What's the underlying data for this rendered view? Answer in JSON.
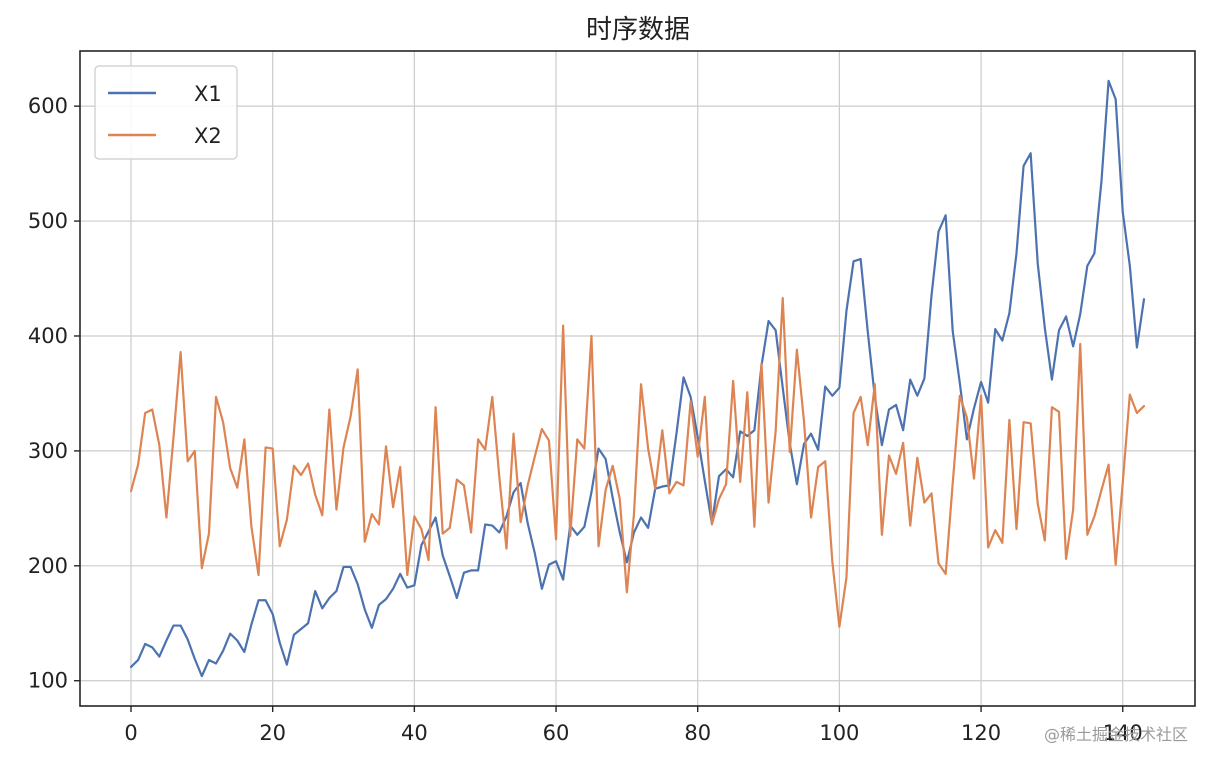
{
  "chart_data": {
    "type": "line",
    "title": "时序数据",
    "xlabel": "",
    "ylabel": "",
    "xlim": [
      -7.2,
      150.2
    ],
    "ylim": [
      78,
      648
    ],
    "xticks": [
      0,
      20,
      40,
      60,
      80,
      100,
      120,
      140
    ],
    "yticks": [
      100,
      200,
      300,
      400,
      500,
      600
    ],
    "xtick_labels": [
      "0",
      "20",
      "40",
      "60",
      "80",
      "100",
      "120",
      "140"
    ],
    "ytick_labels": [
      "100",
      "200",
      "300",
      "400",
      "500",
      "600"
    ],
    "grid": true,
    "legend": "top-left",
    "series": [
      {
        "name": "X1",
        "color": "#4c72b0",
        "values": [
          112,
          118,
          132,
          129,
          121,
          135,
          148,
          148,
          136,
          119,
          104,
          118,
          115,
          126,
          141,
          135,
          125,
          149,
          170,
          170,
          158,
          133,
          114,
          140,
          145,
          150,
          178,
          163,
          172,
          178,
          199,
          199,
          184,
          162,
          146,
          166,
          171,
          180,
          193,
          181,
          183,
          218,
          230,
          242,
          209,
          191,
          172,
          194,
          196,
          196,
          236,
          235,
          229,
          243,
          264,
          272,
          237,
          211,
          180,
          201,
          204,
          188,
          235,
          227,
          234,
          264,
          302,
          293,
          259,
          229,
          203,
          229,
          242,
          233,
          267,
          269,
          270,
          315,
          364,
          347,
          312,
          274,
          237,
          278,
          284,
          277,
          317,
          313,
          318,
          374,
          413,
          405,
          355,
          306,
          271,
          306,
          315,
          301,
          356,
          348,
          355,
          422,
          465,
          467,
          404,
          347,
          305,
          336,
          340,
          318,
          362,
          348,
          363,
          435,
          491,
          505,
          404,
          359,
          310,
          337,
          360,
          342,
          406,
          396,
          420,
          472,
          548,
          559,
          463,
          407,
          362,
          405,
          417,
          391,
          419,
          461,
          472,
          535,
          622,
          606,
          508,
          461,
          390,
          432
        ]
      },
      {
        "name": "X2",
        "color": "#dd8452",
        "values": [
          265,
          288,
          333,
          336,
          305,
          242,
          312,
          386,
          291,
          300,
          198,
          228,
          347,
          325,
          285,
          268,
          310,
          234,
          192,
          303,
          302,
          217,
          240,
          287,
          279,
          289,
          262,
          244,
          336,
          249,
          303,
          330,
          371,
          221,
          245,
          236,
          304,
          251,
          286,
          192,
          243,
          232,
          205,
          338,
          228,
          233,
          275,
          270,
          229,
          310,
          301,
          347,
          277,
          215,
          315,
          238,
          270,
          295,
          319,
          309,
          223,
          409,
          226,
          310,
          302,
          400,
          217,
          266,
          287,
          258,
          177,
          245,
          358,
          302,
          267,
          318,
          263,
          273,
          270,
          343,
          295,
          347,
          236,
          258,
          271,
          361,
          273,
          351,
          234,
          376,
          255,
          317,
          433,
          299,
          388,
          326,
          242,
          286,
          291,
          204,
          147,
          190,
          333,
          347,
          305,
          358,
          227,
          296,
          280,
          307,
          235,
          294,
          255,
          263,
          202,
          193,
          272,
          348,
          329,
          276,
          348,
          216,
          231,
          220,
          327,
          232,
          325,
          324,
          254,
          222,
          338,
          334,
          206,
          249,
          393,
          227,
          243,
          266,
          288,
          201,
          272,
          349,
          333,
          339
        ]
      }
    ]
  },
  "watermark": "@稀土掘金技术社区"
}
